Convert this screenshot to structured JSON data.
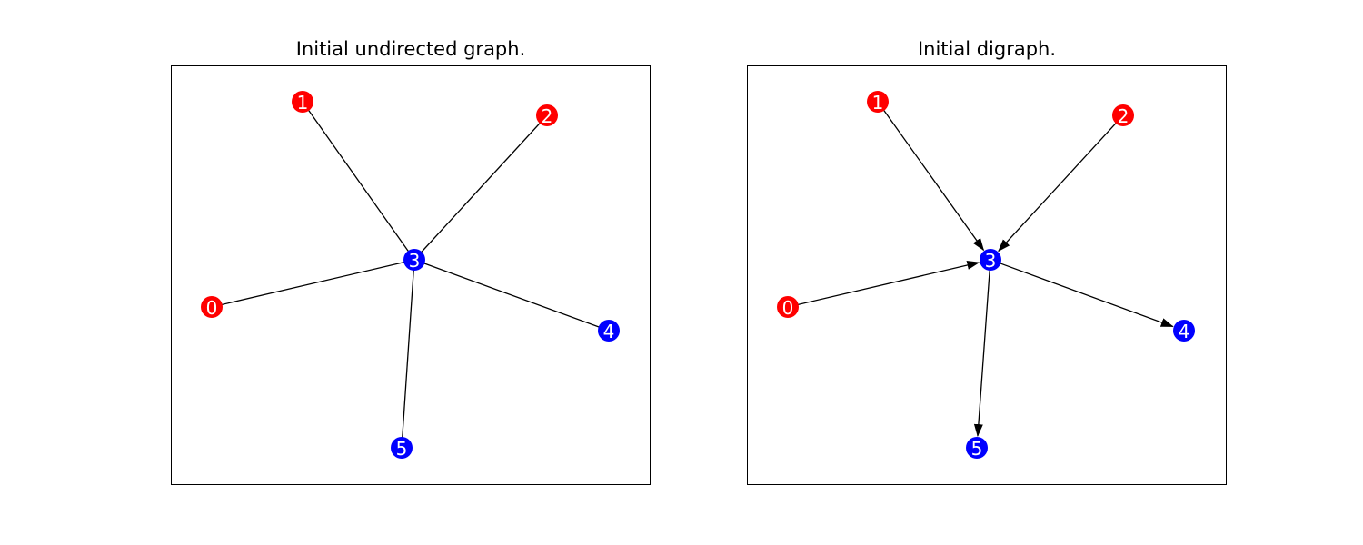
{
  "panels": [
    {
      "title": "Initial undirected graph.",
      "directed": false,
      "nodes": [
        {
          "id": "0",
          "color": "#ff0000"
        },
        {
          "id": "1",
          "color": "#ff0000"
        },
        {
          "id": "2",
          "color": "#ff0000"
        },
        {
          "id": "3",
          "color": "#0000ff"
        },
        {
          "id": "4",
          "color": "#0000ff"
        },
        {
          "id": "5",
          "color": "#0000ff"
        }
      ],
      "edges": [
        [
          "1",
          "3"
        ],
        [
          "2",
          "3"
        ],
        [
          "0",
          "3"
        ],
        [
          "3",
          "4"
        ],
        [
          "3",
          "5"
        ]
      ]
    },
    {
      "title": "Initial digraph.",
      "directed": true,
      "nodes": [
        {
          "id": "0",
          "color": "#ff0000"
        },
        {
          "id": "1",
          "color": "#ff0000"
        },
        {
          "id": "2",
          "color": "#ff0000"
        },
        {
          "id": "3",
          "color": "#0000ff"
        },
        {
          "id": "4",
          "color": "#0000ff"
        },
        {
          "id": "5",
          "color": "#0000ff"
        }
      ],
      "edges": [
        [
          "1",
          "3"
        ],
        [
          "2",
          "3"
        ],
        [
          "0",
          "3"
        ],
        [
          "3",
          "4"
        ],
        [
          "3",
          "5"
        ]
      ]
    }
  ],
  "colors": {
    "edge": "#000000",
    "label": "#ffffff",
    "frame": "#000000"
  }
}
